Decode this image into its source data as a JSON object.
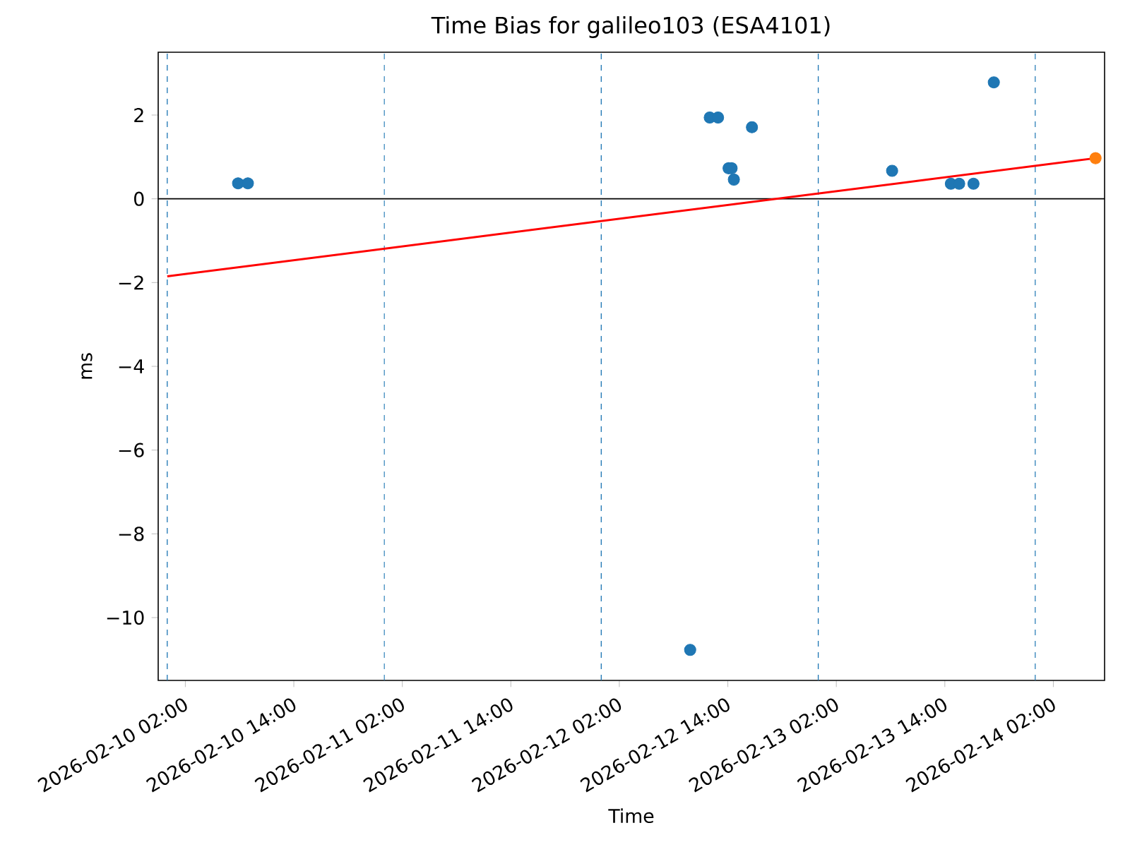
{
  "chart_data": {
    "type": "scatter",
    "title": "Time Bias for galileo103 (ESA4101)",
    "xlabel": "Time",
    "ylabel": "ms",
    "xlim": [
      "2026-02-09T23:00",
      "2026-02-14T07:40"
    ],
    "xticks": [
      {
        "value": "2026-02-10T02:00",
        "label": "2026-02-10 02:00"
      },
      {
        "value": "2026-02-10T14:00",
        "label": "2026-02-10 14:00"
      },
      {
        "value": "2026-02-11T02:00",
        "label": "2026-02-11 02:00"
      },
      {
        "value": "2026-02-11T14:00",
        "label": "2026-02-11 14:00"
      },
      {
        "value": "2026-02-12T02:00",
        "label": "2026-02-12 02:00"
      },
      {
        "value": "2026-02-12T14:00",
        "label": "2026-02-12 14:00"
      },
      {
        "value": "2026-02-13T02:00",
        "label": "2026-02-13 02:00"
      },
      {
        "value": "2026-02-13T14:00",
        "label": "2026-02-13 14:00"
      },
      {
        "value": "2026-02-14T02:00",
        "label": "2026-02-14 02:00"
      }
    ],
    "ylim": [
      -11.5,
      3.5
    ],
    "yticks": [
      {
        "value": -10,
        "label": "−10"
      },
      {
        "value": -8,
        "label": "−8"
      },
      {
        "value": -6,
        "label": "−6"
      },
      {
        "value": -4,
        "label": "−4"
      },
      {
        "value": -2,
        "label": "−2"
      },
      0,
      2
    ],
    "marker": "circle",
    "ref_lines": [
      {
        "axis": "x",
        "value": "2026-02-10T00:00",
        "color": "#1f77b4",
        "line_style": "dashed"
      },
      {
        "axis": "x",
        "value": "2026-02-11T00:00",
        "color": "#1f77b4",
        "line_style": "dashed"
      },
      {
        "axis": "x",
        "value": "2026-02-12T00:00",
        "color": "#1f77b4",
        "line_style": "dashed"
      },
      {
        "axis": "x",
        "value": "2026-02-13T00:00",
        "color": "#1f77b4",
        "line_style": "dashed"
      },
      {
        "axis": "x",
        "value": "2026-02-14T00:00",
        "color": "#1f77b4",
        "line_style": "dashed"
      },
      {
        "axis": "y",
        "value": 0,
        "color": "#000000",
        "line_style": "solid"
      }
    ],
    "series": [
      {
        "type": "line",
        "color": "#ff0000",
        "marker": "none",
        "x": [
          "2026-02-10T00:00",
          "2026-02-14T06:40"
        ],
        "values": [
          -1.85,
          0.97
        ]
      },
      {
        "color": "#1f77b4",
        "x": [
          "2026-02-10T07:50",
          "2026-02-10T08:55",
          "2026-02-12T09:50",
          "2026-02-12T12:00",
          "2026-02-12T12:55",
          "2026-02-12T16:40",
          "2026-02-12T14:05",
          "2026-02-12T14:25",
          "2026-02-12T14:40",
          "2026-02-13T08:10",
          "2026-02-13T14:40",
          "2026-02-13T15:35",
          "2026-02-13T17:10",
          "2026-02-13T19:25"
        ],
        "values": [
          0.37,
          0.37,
          -10.77,
          1.94,
          1.94,
          1.71,
          0.73,
          0.73,
          0.46,
          0.67,
          0.36,
          0.36,
          0.36,
          2.78
        ]
      },
      {
        "color": "#ff7f0e",
        "x": [
          "2026-02-14T06:40"
        ],
        "values": [
          0.97
        ]
      }
    ]
  }
}
